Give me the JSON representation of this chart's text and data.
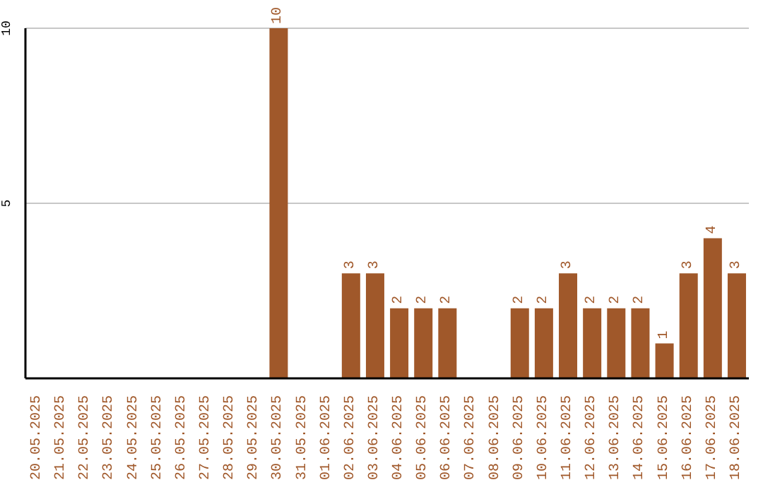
{
  "chart_data": {
    "type": "bar",
    "categories": [
      "20.05.2025",
      "21.05.2025",
      "22.05.2025",
      "23.05.2025",
      "24.05.2025",
      "25.05.2025",
      "26.05.2025",
      "27.05.2025",
      "28.05.2025",
      "29.05.2025",
      "30.05.2025",
      "31.05.2025",
      "01.06.2025",
      "02.06.2025",
      "03.06.2025",
      "04.06.2025",
      "05.06.2025",
      "06.06.2025",
      "07.06.2025",
      "08.06.2025",
      "09.06.2025",
      "10.06.2025",
      "11.06.2025",
      "12.06.2025",
      "13.06.2025",
      "14.06.2025",
      "15.06.2025",
      "16.06.2025",
      "17.06.2025",
      "18.06.2025"
    ],
    "values": [
      0,
      0,
      0,
      0,
      0,
      0,
      0,
      0,
      0,
      0,
      10,
      0,
      0,
      3,
      3,
      2,
      2,
      2,
      0,
      0,
      2,
      2,
      3,
      2,
      2,
      2,
      1,
      3,
      4,
      3
    ],
    "value_labels": [
      null,
      null,
      null,
      null,
      null,
      null,
      null,
      null,
      null,
      null,
      "10",
      null,
      null,
      "3",
      "3",
      "2",
      "2",
      "2",
      null,
      null,
      "2",
      "2",
      "3",
      "2",
      "2",
      "2",
      "1",
      "3",
      "4",
      "3"
    ],
    "color": "#a0582a",
    "ylim": [
      0,
      10
    ],
    "yticks": [
      5,
      10
    ],
    "grid": "y"
  }
}
